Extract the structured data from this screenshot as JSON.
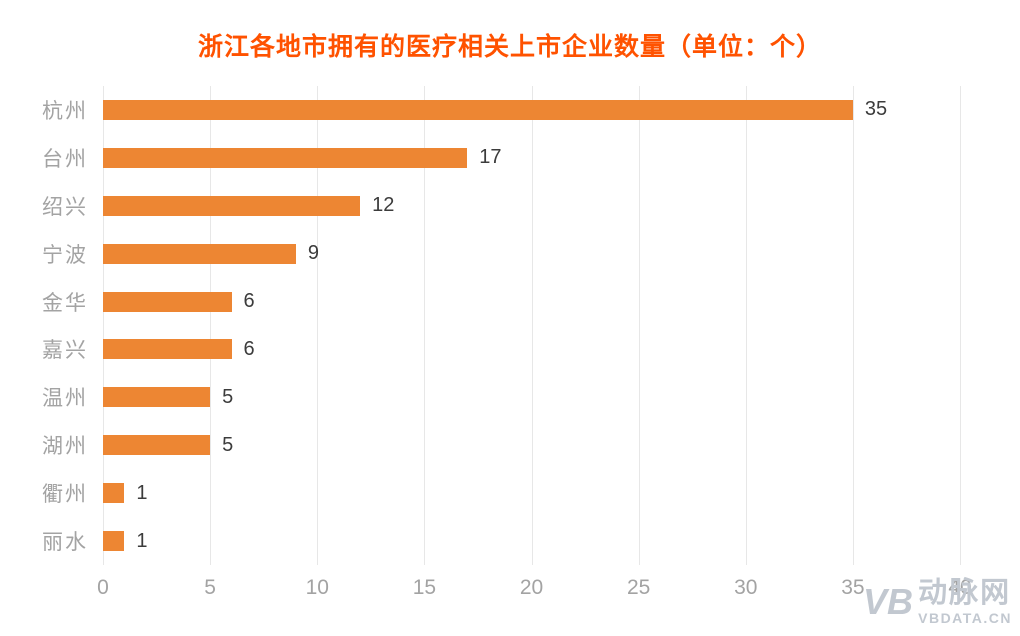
{
  "title": "浙江各地市拥有的医疗相关上市企业数量（单位：个）",
  "colors": {
    "title": "#FF5200",
    "bar": "#ED8633",
    "axis_label": "#A3A3A3",
    "gridline": "#E7E7E7",
    "value_label": "#3C3C3C",
    "watermark": "#C2C8D0"
  },
  "chart_data": {
    "type": "bar",
    "orientation": "horizontal",
    "title": "浙江各地市拥有的医疗相关上市企业数量（单位：个）",
    "categories": [
      "杭州",
      "台州",
      "绍兴",
      "宁波",
      "金华",
      "嘉兴",
      "温州",
      "湖州",
      "衢州",
      "丽水"
    ],
    "values": [
      35,
      17,
      12,
      9,
      6,
      6,
      5,
      5,
      1,
      1
    ],
    "xlim": [
      0,
      40
    ],
    "x_ticks": [
      0,
      5,
      10,
      15,
      20,
      25,
      30,
      35,
      40
    ],
    "grid": true,
    "value_labels": true,
    "legend": "none"
  },
  "watermark": {
    "logo": "VB",
    "name": "动脉网",
    "site": "VBDATA.CN"
  }
}
